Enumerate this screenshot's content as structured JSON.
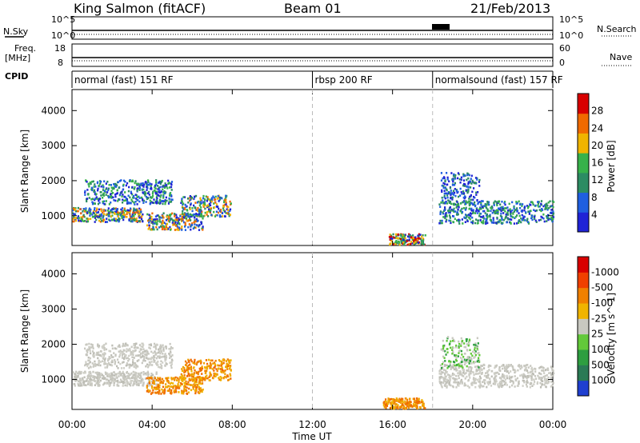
{
  "header": {
    "station": "King Salmon (fitACF)",
    "beam": "Beam 01",
    "date": "21/Feb/2013"
  },
  "top_panels": {
    "nsky_label": "N.Sky",
    "nsky_ticks": [
      "10^5",
      "10^0"
    ],
    "nsearch_label": "N.Search",
    "nsearch_ticks": [
      "10^5",
      "10^0"
    ],
    "freq_label": "Freq.",
    "freq_unit": "[MHz]",
    "freq_ticks": [
      "18",
      "8"
    ],
    "nave_label": "Nave",
    "nave_ticks": [
      "60",
      "0"
    ],
    "cpid_label": "CPID",
    "segments": [
      {
        "label": "normal (fast) 151 RF",
        "start": 0,
        "end": 12
      },
      {
        "label": "rbsp 200 RF",
        "start": 12,
        "end": 18
      },
      {
        "label": "normalsound (fast) 157 RF",
        "start": 18,
        "end": 24
      }
    ]
  },
  "chart_data": [
    {
      "type": "heatmap",
      "title": "",
      "xlabel": "",
      "ylabel": "Slant Range [km]",
      "xlim": [
        0,
        24
      ],
      "ylim": [
        150,
        4600
      ],
      "y_ticks": [
        1000,
        2000,
        3000,
        4000
      ],
      "colorbar": {
        "label": "Power [dB]",
        "ticks": [
          "4",
          "8",
          "12",
          "16",
          "20",
          "24",
          "28"
        ],
        "colors": [
          "#1f23d6",
          "#1f5fe0",
          "#2c8c63",
          "#37b24a",
          "#f0b400",
          "#f06a00",
          "#d80000"
        ]
      },
      "echo_regions": [
        {
          "t_start": 0.0,
          "t_end": 3.5,
          "r_low": 850,
          "r_high": 1250,
          "level": "high"
        },
        {
          "t_start": 0.6,
          "t_end": 5.0,
          "r_low": 1350,
          "r_high": 2050,
          "level": "mid"
        },
        {
          "t_start": 3.7,
          "t_end": 6.5,
          "r_low": 620,
          "r_high": 1100,
          "level": "high"
        },
        {
          "t_start": 5.4,
          "t_end": 7.9,
          "r_low": 1000,
          "r_high": 1600,
          "level": "high"
        },
        {
          "t_start": 15.8,
          "t_end": 17.6,
          "r_low": 200,
          "r_high": 500,
          "level": "mixed"
        },
        {
          "t_start": 18.3,
          "t_end": 24.0,
          "r_low": 800,
          "r_high": 1450,
          "level": "mid"
        },
        {
          "t_start": 18.4,
          "t_end": 20.3,
          "r_low": 1350,
          "r_high": 2250,
          "level": "low"
        }
      ]
    },
    {
      "type": "heatmap",
      "title": "",
      "xlabel": "Time UT",
      "ylabel": "Slant Range [km]",
      "xlim": [
        0,
        24
      ],
      "ylim": [
        150,
        4600
      ],
      "x_ticks": [
        "00:00",
        "04:00",
        "08:00",
        "12:00",
        "16:00",
        "20:00",
        "00:00"
      ],
      "y_ticks": [
        1000,
        2000,
        3000,
        4000
      ],
      "colorbar": {
        "label": "Velocity [m s^-1]",
        "ticks": [
          "1000",
          "500",
          "100",
          "25",
          "-25",
          "-100",
          "-500",
          "-1000"
        ],
        "colors": [
          "#1f3fd0",
          "#2a7a55",
          "#2e9e40",
          "#63c93a",
          "#c8c8c0",
          "#f0b400",
          "#f08000",
          "#f04000",
          "#d80000"
        ]
      },
      "echo_regions": [
        {
          "t_start": 0.0,
          "t_end": 4.2,
          "r_low": 850,
          "r_high": 1250,
          "level": "ground"
        },
        {
          "t_start": 0.6,
          "t_end": 5.0,
          "r_low": 1350,
          "r_high": 2050,
          "level": "ground"
        },
        {
          "t_start": 3.7,
          "t_end": 6.5,
          "r_low": 620,
          "r_high": 1100,
          "level": "negative"
        },
        {
          "t_start": 5.4,
          "t_end": 7.9,
          "r_low": 1000,
          "r_high": 1600,
          "level": "negative"
        },
        {
          "t_start": 15.5,
          "t_end": 17.6,
          "r_low": 200,
          "r_high": 500,
          "level": "negative"
        },
        {
          "t_start": 18.3,
          "t_end": 24.0,
          "r_low": 800,
          "r_high": 1450,
          "level": "ground"
        },
        {
          "t_start": 18.4,
          "t_end": 20.3,
          "r_low": 1350,
          "r_high": 2250,
          "level": "positive"
        }
      ]
    }
  ]
}
